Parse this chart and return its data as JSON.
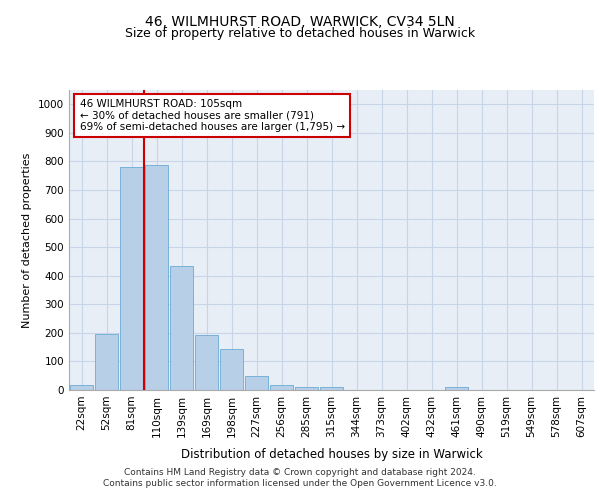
{
  "title1": "46, WILMHURST ROAD, WARWICK, CV34 5LN",
  "title2": "Size of property relative to detached houses in Warwick",
  "xlabel": "Distribution of detached houses by size in Warwick",
  "ylabel": "Number of detached properties",
  "categories": [
    "22sqm",
    "52sqm",
    "81sqm",
    "110sqm",
    "139sqm",
    "169sqm",
    "198sqm",
    "227sqm",
    "256sqm",
    "285sqm",
    "315sqm",
    "344sqm",
    "373sqm",
    "402sqm",
    "432sqm",
    "461sqm",
    "490sqm",
    "519sqm",
    "549sqm",
    "578sqm",
    "607sqm"
  ],
  "values": [
    18,
    197,
    781,
    789,
    435,
    192,
    142,
    50,
    18,
    11,
    11,
    0,
    0,
    0,
    0,
    11,
    0,
    0,
    0,
    0,
    0
  ],
  "bar_color": "#b8cfe8",
  "bar_edge_color": "#6aaad4",
  "grid_color": "#c8d4e8",
  "background_color": "#e8eef6",
  "vline_color": "#cc0000",
  "annotation_text": "46 WILMHURST ROAD: 105sqm\n← 30% of detached houses are smaller (791)\n69% of semi-detached houses are larger (1,795) →",
  "annotation_box_color": "#ffffff",
  "annotation_box_edge": "#cc0000",
  "ylim": [
    0,
    1050
  ],
  "yticks": [
    0,
    100,
    200,
    300,
    400,
    500,
    600,
    700,
    800,
    900,
    1000
  ],
  "footer_line1": "Contains HM Land Registry data © Crown copyright and database right 2024.",
  "footer_line2": "Contains public sector information licensed under the Open Government Licence v3.0.",
  "title1_fontsize": 10,
  "title2_fontsize": 9,
  "xlabel_fontsize": 8.5,
  "ylabel_fontsize": 8,
  "tick_fontsize": 7.5,
  "footer_fontsize": 6.5
}
